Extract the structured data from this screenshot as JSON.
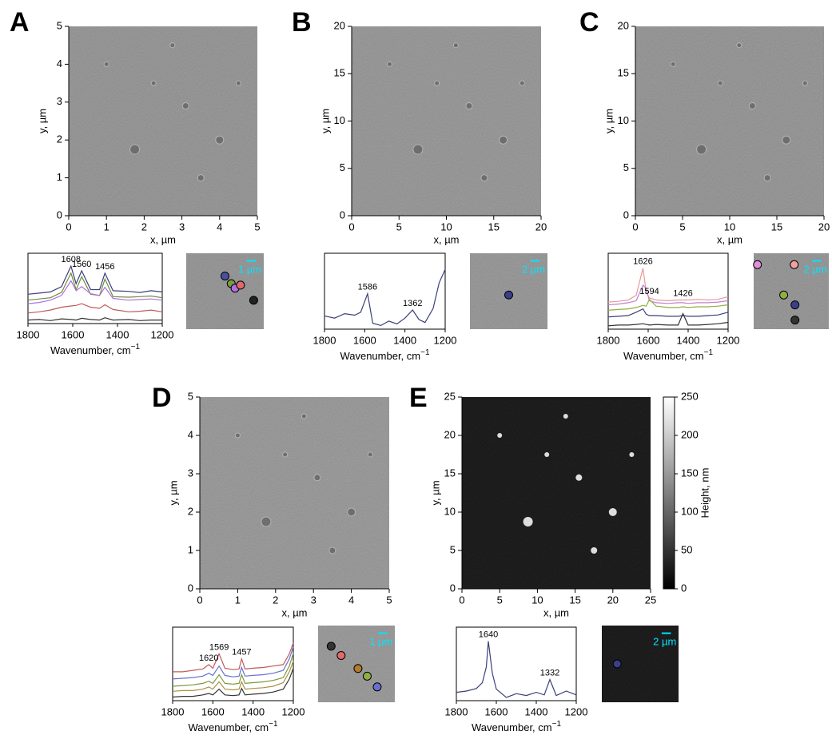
{
  "panels": [
    {
      "label": "A",
      "image": {
        "xlabel": "x, µm",
        "ylabel": "y, µm",
        "xlim": [
          0,
          5
        ],
        "ylim": [
          0,
          5
        ],
        "xticks": [
          0,
          1,
          2,
          3,
          4,
          5
        ],
        "yticks": [
          0,
          1,
          2,
          3,
          4,
          5
        ],
        "tone": "#8a8a8a"
      },
      "spectrum": {
        "xlabel": "Wavenumber, cm",
        "xlabel_exponent": "−1",
        "xlim": [
          1800,
          1200
        ],
        "xticks": [
          1800,
          1600,
          1400,
          1200
        ],
        "peaks": [
          1608,
          1560,
          1456
        ],
        "x": [
          1800,
          1750,
          1700,
          1650,
          1608,
          1585,
          1560,
          1520,
          1480,
          1456,
          1420,
          1350,
          1300,
          1250,
          1200
        ],
        "series": [
          {
            "color": "#3b3f7a",
            "values": [
              5.2,
              5.4,
              5.6,
              6.5,
              10,
              7,
              9.2,
              6,
              6,
              8.8,
              5.8,
              5.7,
              5.5,
              5.8,
              5.6
            ]
          },
          {
            "color": "#6b8e3a",
            "values": [
              4.2,
              4.4,
              4.6,
              5.5,
              8.8,
              6,
              8.2,
              5.2,
              5,
              7.8,
              4.8,
              4.7,
              4.8,
              4.9,
              4.6
            ]
          },
          {
            "color": "#b070e0",
            "values": [
              3.6,
              3.8,
              4.2,
              5,
              7.5,
              5.8,
              6.5,
              5.3,
              5,
              6.4,
              4.5,
              4.2,
              4.3,
              4.4,
              4.2
            ]
          },
          {
            "color": "#c05a5a",
            "values": [
              2,
              2.2,
              2.5,
              3,
              3.2,
              3.3,
              3.6,
              3,
              2.8,
              3.4,
              2.6,
              2.2,
              2.3,
              2.5,
              2.2
            ]
          },
          {
            "color": "#333333",
            "values": [
              0.8,
              0.9,
              0.7,
              1,
              0.9,
              0.8,
              1.1,
              0.9,
              0.8,
              1.2,
              0.8,
              0.9,
              0.7,
              0.8,
              0.8
            ]
          }
        ]
      },
      "inset": {
        "scale_bar": "1 µm",
        "dots": [
          "#4a4fa0",
          "#7a9a40",
          "#b070e0",
          "#e06a6a",
          "#222222"
        ]
      }
    },
    {
      "label": "B",
      "image": {
        "xlabel": "x, µm",
        "ylabel": "y, µm",
        "xlim": [
          0,
          20
        ],
        "ylim": [
          0,
          20
        ],
        "xticks": [
          0,
          5,
          10,
          15,
          20
        ],
        "yticks": [
          0,
          5,
          10,
          15,
          20
        ],
        "tone": "#8c8c8c"
      },
      "spectrum": {
        "xlabel": "Wavenumber, cm",
        "xlabel_exponent": "−1",
        "xlim": [
          1800,
          1200
        ],
        "xticks": [
          1800,
          1600,
          1400,
          1200
        ],
        "peaks": [
          1586,
          1362
        ],
        "x": [
          1800,
          1750,
          1700,
          1650,
          1620,
          1586,
          1560,
          1520,
          1480,
          1440,
          1400,
          1362,
          1330,
          1300,
          1260,
          1230,
          1200
        ],
        "series": [
          {
            "color": "#3b3f7a",
            "values": [
              3.5,
              3.2,
              3.8,
              3.6,
              4,
              6.5,
              2.5,
              2.2,
              2.8,
              2.4,
              3.2,
              4.3,
              3,
              2.6,
              4.5,
              8,
              9.8
            ]
          }
        ]
      },
      "inset": {
        "scale_bar": "2 µm",
        "dots": [
          "#3b3f8a"
        ]
      }
    },
    {
      "label": "C",
      "image": {
        "xlabel": "x, µm",
        "ylabel": "y, µm",
        "xlim": [
          0,
          20
        ],
        "ylim": [
          0,
          20
        ],
        "xticks": [
          0,
          5,
          10,
          15,
          20
        ],
        "yticks": [
          0,
          5,
          10,
          15,
          20
        ],
        "tone": "#8a8a8a"
      },
      "spectrum": {
        "xlabel": "Wavenumber, cm",
        "xlabel_exponent": "−1",
        "xlim": [
          1800,
          1200
        ],
        "xticks": [
          1800,
          1600,
          1400,
          1200
        ],
        "peaks": [
          1626,
          1594,
          1426
        ],
        "x": [
          1800,
          1750,
          1700,
          1660,
          1626,
          1610,
          1594,
          1560,
          1500,
          1450,
          1426,
          1400,
          1350,
          1300,
          1250,
          1200
        ],
        "series": [
          {
            "color": "#e89a9a",
            "values": [
              5,
              5.1,
              5.3,
              6,
              10,
              6.5,
              5.6,
              5.3,
              5.2,
              5.3,
              5.3,
              5.3,
              5.4,
              5.3,
              5.4,
              5.8
            ]
          },
          {
            "color": "#c080d0",
            "values": [
              4.6,
              4.7,
              4.9,
              5.2,
              7.5,
              7,
              5.2,
              4.9,
              4.8,
              4.9,
              4.9,
              4.8,
              4.9,
              4.9,
              5,
              5.2
            ]
          },
          {
            "color": "#8fb040",
            "values": [
              3.8,
              3.9,
              4,
              4.2,
              4.5,
              4.4,
              5.4,
              4.4,
              4.2,
              4.2,
              4.3,
              4.2,
              4.3,
              4.3,
              4.4,
              4.6
            ]
          },
          {
            "color": "#3b3f7a",
            "values": [
              2.8,
              2.9,
              3,
              3.5,
              4,
              3.2,
              3,
              3,
              2.9,
              2.9,
              3,
              2.9,
              2.9,
              3,
              3.1,
              3.5
            ]
          },
          {
            "color": "#333333",
            "values": [
              1.5,
              1.6,
              1.6,
              1.7,
              1.8,
              1.7,
              1.6,
              1.7,
              1.6,
              1.6,
              3.3,
              1.6,
              1.6,
              1.7,
              1.8,
              2
            ]
          }
        ]
      },
      "inset": {
        "scale_bar": "2 µm",
        "dots": [
          "#e090d8",
          "#f0a0a0",
          "#8fb040",
          "#3b3f8a",
          "#333333"
        ]
      }
    },
    {
      "label": "D",
      "image": {
        "xlabel": "x, µm",
        "ylabel": "y, µm",
        "xlim": [
          0,
          5
        ],
        "ylim": [
          0,
          5
        ],
        "xticks": [
          0,
          1,
          2,
          3,
          4,
          5
        ],
        "yticks": [
          0,
          1,
          2,
          3,
          4,
          5
        ],
        "tone": "#8e8e8e"
      },
      "spectrum": {
        "xlabel": "Wavenumber, cm",
        "xlabel_exponent": "−1",
        "xlim": [
          1800,
          1200
        ],
        "xticks": [
          1800,
          1600,
          1400,
          1200
        ],
        "peaks": [
          1620,
          1569,
          1457
        ],
        "x": [
          1800,
          1750,
          1700,
          1650,
          1620,
          1600,
          1569,
          1540,
          1500,
          1470,
          1457,
          1440,
          1400,
          1350,
          1300,
          1250,
          1220,
          1200
        ],
        "series": [
          {
            "color": "#c05a5a",
            "values": [
              6,
              6,
              6.2,
              6.4,
              7,
              6.5,
              8.5,
              6.5,
              6.3,
              6.4,
              7.8,
              6.4,
              6.5,
              6.6,
              6.8,
              7,
              8.5,
              10
            ]
          },
          {
            "color": "#6a70d0",
            "values": [
              5,
              5.1,
              5.2,
              5.4,
              5.8,
              5.5,
              6.8,
              5.5,
              5.3,
              5.4,
              6.6,
              5.4,
              5.5,
              5.6,
              5.8,
              6.2,
              7.8,
              9.5
            ]
          },
          {
            "color": "#7a9a40",
            "values": [
              4,
              4.1,
              4.2,
              4.4,
              4.7,
              4.4,
              5.6,
              4.4,
              4.3,
              4.4,
              5.6,
              4.4,
              4.5,
              4.6,
              4.8,
              5.2,
              6.8,
              8.6
            ]
          },
          {
            "color": "#b09040",
            "values": [
              3.3,
              3.4,
              3.4,
              3.6,
              3.9,
              3.6,
              4.6,
              3.6,
              3.5,
              3.6,
              4.6,
              3.6,
              3.7,
              3.8,
              4,
              4.5,
              6,
              7.5
            ]
          },
          {
            "color": "#333333",
            "values": [
              2.5,
              2.6,
              2.6,
              2.8,
              3,
              2.8,
              3.6,
              2.8,
              2.7,
              2.8,
              3.7,
              2.8,
              2.9,
              3,
              3.2,
              3.6,
              5,
              6.5
            ]
          }
        ]
      },
      "inset": {
        "scale_bar": "1 µm",
        "dots": [
          "#333333",
          "#e06a6a",
          "#b07a30",
          "#8fb040",
          "#6a70d0"
        ]
      }
    },
    {
      "label": "E",
      "image": {
        "xlabel": "x, µm",
        "ylabel": "y, µm",
        "xlim": [
          0,
          25
        ],
        "ylim": [
          0,
          25
        ],
        "xticks": [
          0,
          5,
          10,
          15,
          20,
          25
        ],
        "yticks": [
          0,
          5,
          10,
          15,
          20,
          25
        ],
        "tone": "#121212"
      },
      "colorbar": {
        "label": "Height, nm",
        "lim": [
          0,
          250
        ],
        "ticks": [
          0,
          50,
          100,
          150,
          200,
          250
        ]
      },
      "spectrum": {
        "xlabel": "Wavenumber, cm",
        "xlabel_exponent": "−1",
        "xlim": [
          1800,
          1200
        ],
        "xticks": [
          1800,
          1600,
          1400,
          1200
        ],
        "peaks": [
          1640,
          1332
        ],
        "x": [
          1800,
          1750,
          1700,
          1670,
          1650,
          1640,
          1620,
          1600,
          1550,
          1500,
          1450,
          1400,
          1360,
          1332,
          1300,
          1250,
          1200
        ],
        "series": [
          {
            "color": "#3b3f7a",
            "values": [
              2,
              2.2,
              2.6,
              3.5,
              6,
              10,
              5,
              2.5,
              1.2,
              1.8,
              1.5,
              2,
              1.6,
              4,
              1.5,
              2.2,
              1.6
            ]
          }
        ]
      },
      "inset": {
        "scale_bar": "2 µm",
        "dots": [
          "#3b3f8a"
        ]
      }
    }
  ]
}
